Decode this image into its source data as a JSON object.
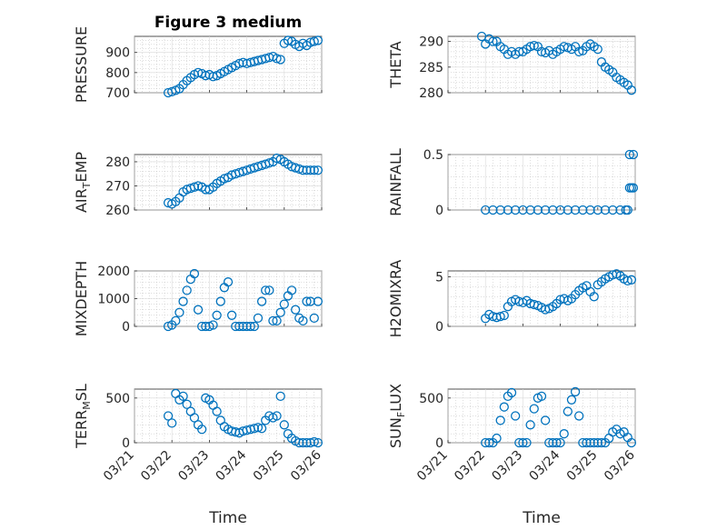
{
  "figure": {
    "title": "Figure 3 medium",
    "marker_color": "#0072BD"
  },
  "chart_data": [
    {
      "type": "scatter",
      "ylabel": "PRESSURE",
      "xlabel": "",
      "xlim": [
        0,
        5
      ],
      "ylim": [
        700,
        980
      ],
      "yticks": [
        700,
        800,
        900
      ],
      "xtick_labels": [
        "03/21",
        "03/22",
        "03/23",
        "03/24",
        "03/25",
        "03/26"
      ],
      "x": [
        0.9,
        1.0,
        1.1,
        1.2,
        1.3,
        1.4,
        1.5,
        1.6,
        1.7,
        1.8,
        1.9,
        2.0,
        2.1,
        2.2,
        2.3,
        2.4,
        2.5,
        2.6,
        2.7,
        2.8,
        2.9,
        3.0,
        3.1,
        3.2,
        3.3,
        3.4,
        3.5,
        3.6,
        3.7,
        3.8,
        3.9,
        4.0,
        4.1,
        4.2,
        4.3,
        4.4,
        4.5,
        4.6,
        4.7,
        4.8,
        4.9
      ],
      "y": [
        700,
        705,
        712,
        720,
        740,
        760,
        775,
        790,
        800,
        795,
        785,
        790,
        780,
        785,
        795,
        805,
        815,
        825,
        835,
        845,
        850,
        845,
        850,
        855,
        860,
        865,
        870,
        875,
        880,
        870,
        865,
        945,
        960,
        955,
        940,
        930,
        945,
        935,
        950,
        955,
        960
      ]
    },
    {
      "type": "scatter",
      "ylabel": "THETA",
      "xlabel": "",
      "xlim": [
        0,
        5
      ],
      "ylim": [
        280,
        291
      ],
      "yticks": [
        280,
        285,
        290
      ],
      "xtick_labels": [
        "03/21",
        "03/22",
        "03/23",
        "03/24",
        "03/25",
        "03/26"
      ],
      "x": [
        0.9,
        1.0,
        1.1,
        1.2,
        1.3,
        1.4,
        1.5,
        1.6,
        1.7,
        1.8,
        1.9,
        2.0,
        2.1,
        2.2,
        2.3,
        2.4,
        2.5,
        2.6,
        2.7,
        2.8,
        2.9,
        3.0,
        3.1,
        3.2,
        3.3,
        3.4,
        3.5,
        3.6,
        3.7,
        3.8,
        3.9,
        4.0,
        4.1,
        4.2,
        4.3,
        4.4,
        4.5,
        4.6,
        4.7,
        4.8,
        4.9
      ],
      "y": [
        291,
        289.5,
        290.5,
        290,
        290,
        289,
        288.5,
        287.5,
        288,
        287.5,
        288,
        288,
        288.5,
        289,
        289.2,
        289,
        288,
        287.8,
        288.2,
        287.5,
        288,
        288.5,
        289,
        288.8,
        288.5,
        289,
        288,
        288.2,
        289,
        289.5,
        289,
        288.5,
        286,
        285,
        284.5,
        284,
        283,
        282.5,
        282,
        281.5,
        280.5
      ]
    },
    {
      "type": "scatter",
      "ylabel": "AIR_TEMP",
      "xlabel": "",
      "xlim": [
        0,
        5
      ],
      "ylim": [
        260,
        283
      ],
      "yticks": [
        260,
        270,
        280
      ],
      "xtick_labels": [
        "03/21",
        "03/22",
        "03/23",
        "03/24",
        "03/25",
        "03/26"
      ],
      "x": [
        0.9,
        1.0,
        1.1,
        1.2,
        1.3,
        1.4,
        1.5,
        1.6,
        1.7,
        1.8,
        1.9,
        2.0,
        2.1,
        2.2,
        2.3,
        2.4,
        2.5,
        2.6,
        2.7,
        2.8,
        2.9,
        3.0,
        3.1,
        3.2,
        3.3,
        3.4,
        3.5,
        3.6,
        3.7,
        3.8,
        3.9,
        4.0,
        4.1,
        4.2,
        4.3,
        4.4,
        4.5,
        4.6,
        4.7,
        4.8,
        4.9
      ],
      "y": [
        263,
        262.5,
        263.5,
        265,
        267.5,
        268.5,
        269,
        269.5,
        270,
        269.5,
        268.5,
        268.5,
        269.5,
        271,
        272,
        273,
        273.5,
        274.5,
        275,
        275.5,
        276,
        276.5,
        277,
        277.5,
        278,
        278.5,
        279,
        279.5,
        280,
        281.5,
        281,
        280,
        279,
        278,
        277.5,
        277,
        276.5,
        276.5,
        276.5,
        276.5,
        276.5
      ]
    },
    {
      "type": "scatter",
      "ylabel": "RAINFALL",
      "xlabel": "",
      "xlim": [
        0,
        5
      ],
      "ylim": [
        0,
        0.5
      ],
      "yticks": [
        0,
        0.5
      ],
      "xtick_labels": [
        "03/21",
        "03/22",
        "03/23",
        "03/24",
        "03/25",
        "03/26"
      ],
      "x": [
        1.0,
        1.2,
        1.4,
        1.6,
        1.8,
        2.0,
        2.2,
        2.4,
        2.6,
        2.8,
        3.0,
        3.2,
        3.4,
        3.6,
        3.8,
        4.0,
        4.2,
        4.4,
        4.6,
        4.75,
        4.8,
        4.85,
        4.9,
        4.95,
        4.85,
        4.95
      ],
      "y": [
        0,
        0,
        0,
        0,
        0,
        0,
        0,
        0,
        0,
        0,
        0,
        0,
        0,
        0,
        0,
        0,
        0,
        0,
        0,
        0,
        0,
        0.2,
        0.2,
        0.2,
        0.5,
        0.5
      ]
    },
    {
      "type": "scatter",
      "ylabel": "MIXDEPTH",
      "xlabel": "",
      "xlim": [
        0,
        5
      ],
      "ylim": [
        0,
        2000
      ],
      "yticks": [
        0,
        1000,
        2000
      ],
      "xtick_labels": [
        "03/21",
        "03/22",
        "03/23",
        "03/24",
        "03/25",
        "03/26"
      ],
      "x": [
        0.9,
        1.0,
        1.1,
        1.2,
        1.3,
        1.4,
        1.5,
        1.6,
        1.7,
        1.8,
        1.9,
        2.0,
        2.1,
        2.2,
        2.3,
        2.4,
        2.5,
        2.6,
        2.7,
        2.8,
        2.9,
        3.0,
        3.1,
        3.2,
        3.3,
        3.4,
        3.5,
        3.6,
        3.7,
        3.8,
        3.9,
        4.0,
        4.1,
        4.2,
        4.3,
        4.4,
        4.5,
        4.6,
        4.7,
        4.8,
        4.9
      ],
      "y": [
        0,
        50,
        200,
        500,
        900,
        1300,
        1700,
        1900,
        600,
        0,
        0,
        0,
        50,
        400,
        900,
        1400,
        1600,
        400,
        0,
        0,
        0,
        0,
        0,
        0,
        300,
        900,
        1300,
        1300,
        200,
        200,
        500,
        800,
        1100,
        1300,
        600,
        300,
        200,
        900,
        900,
        300,
        900
      ]
    },
    {
      "type": "scatter",
      "ylabel": "H2OMIXRA",
      "xlabel": "",
      "xlim": [
        0,
        5
      ],
      "ylim": [
        0,
        5.6
      ],
      "yticks": [
        0,
        5
      ],
      "xtick_labels": [
        "03/21",
        "03/22",
        "03/23",
        "03/24",
        "03/25",
        "03/26"
      ],
      "x": [
        1.0,
        1.1,
        1.2,
        1.3,
        1.4,
        1.5,
        1.6,
        1.7,
        1.8,
        1.9,
        2.0,
        2.1,
        2.2,
        2.3,
        2.4,
        2.5,
        2.6,
        2.7,
        2.8,
        2.9,
        3.0,
        3.1,
        3.2,
        3.3,
        3.4,
        3.5,
        3.6,
        3.7,
        3.8,
        3.9,
        4.0,
        4.1,
        4.2,
        4.3,
        4.4,
        4.5,
        4.6,
        4.7,
        4.8,
        4.9
      ],
      "y": [
        0.8,
        1.2,
        1.0,
        0.9,
        1.0,
        1.1,
        2.0,
        2.5,
        2.7,
        2.5,
        2.4,
        2.6,
        2.3,
        2.2,
        2.1,
        1.9,
        1.7,
        1.8,
        2.0,
        2.3,
        2.7,
        2.8,
        2.6,
        2.8,
        3.2,
        3.6,
        3.9,
        4.1,
        3.5,
        3.0,
        4.2,
        4.5,
        4.8,
        5.0,
        5.2,
        5.3,
        5.1,
        4.8,
        4.6,
        4.7
      ]
    },
    {
      "type": "scatter",
      "ylabel": "TERR_MSL",
      "xlabel": "Time",
      "xlim": [
        0,
        5
      ],
      "ylim": [
        0,
        600
      ],
      "yticks": [
        0,
        500
      ],
      "xtick_labels": [
        "03/21",
        "03/22",
        "03/23",
        "03/24",
        "03/25",
        "03/26"
      ],
      "x": [
        0.9,
        1.0,
        1.1,
        1.2,
        1.3,
        1.4,
        1.5,
        1.6,
        1.7,
        1.8,
        1.9,
        2.0,
        2.1,
        2.2,
        2.3,
        2.4,
        2.5,
        2.6,
        2.7,
        2.8,
        2.9,
        3.0,
        3.1,
        3.2,
        3.3,
        3.4,
        3.5,
        3.6,
        3.7,
        3.8,
        3.9,
        4.0,
        4.1,
        4.2,
        4.3,
        4.4,
        4.5,
        4.6,
        4.7,
        4.8,
        4.9
      ],
      "y": [
        300,
        220,
        550,
        480,
        520,
        430,
        350,
        280,
        200,
        150,
        500,
        480,
        420,
        350,
        250,
        180,
        150,
        130,
        120,
        110,
        130,
        140,
        150,
        160,
        170,
        160,
        250,
        300,
        280,
        300,
        520,
        200,
        100,
        50,
        20,
        0,
        0,
        0,
        0,
        10,
        0
      ]
    },
    {
      "type": "scatter",
      "ylabel": "SUN_FLUX",
      "xlabel": "Time",
      "xlim": [
        0,
        5
      ],
      "ylim": [
        0,
        600
      ],
      "yticks": [
        0,
        500
      ],
      "xtick_labels": [
        "03/21",
        "03/22",
        "03/23",
        "03/24",
        "03/25",
        "03/26"
      ],
      "x": [
        1.0,
        1.1,
        1.2,
        1.3,
        1.4,
        1.5,
        1.6,
        1.7,
        1.8,
        1.9,
        2.0,
        2.1,
        2.2,
        2.3,
        2.4,
        2.5,
        2.6,
        2.7,
        2.8,
        2.9,
        3.0,
        3.1,
        3.2,
        3.3,
        3.4,
        3.5,
        3.6,
        3.7,
        3.8,
        3.9,
        4.0,
        4.1,
        4.2,
        4.3,
        4.4,
        4.5,
        4.6,
        4.7,
        4.8,
        4.9
      ],
      "y": [
        0,
        0,
        0,
        50,
        250,
        400,
        520,
        560,
        300,
        0,
        0,
        0,
        200,
        380,
        500,
        520,
        250,
        0,
        0,
        0,
        0,
        100,
        350,
        480,
        570,
        300,
        0,
        0,
        0,
        0,
        0,
        0,
        0,
        50,
        120,
        150,
        100,
        120,
        60,
        0
      ]
    }
  ]
}
